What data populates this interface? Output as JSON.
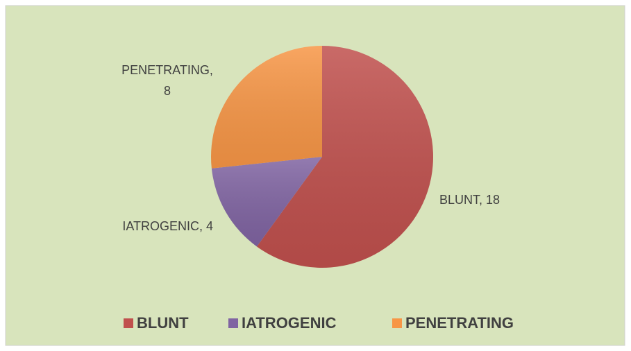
{
  "chart_data": {
    "type": "pie",
    "categories": [
      "BLUNT",
      "IATROGENIC",
      "PENETRATING"
    ],
    "values": [
      18,
      4,
      8
    ],
    "value_labels": [
      "BLUNT, 18",
      "IATROGENIC, 4",
      "PENETRATING, 8"
    ],
    "colors": [
      "#c0504d",
      "#8064a2",
      "#f79646"
    ],
    "legend": "bottom"
  }
}
